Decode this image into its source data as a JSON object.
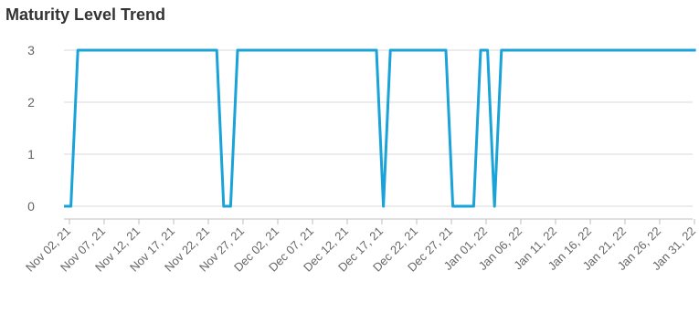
{
  "chart_data": {
    "type": "line",
    "title": "Maturity Level Trend",
    "xlabel": "",
    "ylabel": "",
    "ylim": [
      0,
      3
    ],
    "yticks": [
      0,
      1,
      2,
      3
    ],
    "grid": "horizontal",
    "colors": {
      "line": "#1aa3d9",
      "grid": "#d9d9d9",
      "axis": "#bfbfbf",
      "tick_text": "#666666",
      "title": "#333333"
    },
    "x_tick_labels": [
      "Nov 02, 21",
      "Nov 07, 21",
      "Nov 12, 21",
      "Nov 17, 21",
      "Nov 22, 21",
      "Nov 27, 21",
      "Dec 02, 21",
      "Dec 07, 21",
      "Dec 12, 21",
      "Dec 17, 21",
      "Dec 22, 21",
      "Dec 27, 21",
      "Jan 01, 22",
      "Jan 06, 22",
      "Jan 11, 22",
      "Jan 16, 22",
      "Jan 21, 22",
      "Jan 26, 22",
      "Jan 31, 22"
    ],
    "series": [
      {
        "points": [
          [
            "2021-11-01",
            0
          ],
          [
            "2021-11-02",
            0
          ],
          [
            "2021-11-03",
            3
          ],
          [
            "2021-11-23",
            3
          ],
          [
            "2021-11-24",
            0
          ],
          [
            "2021-11-25",
            0
          ],
          [
            "2021-11-26",
            3
          ],
          [
            "2021-12-16",
            3
          ],
          [
            "2021-12-17",
            0
          ],
          [
            "2021-12-18",
            3
          ],
          [
            "2021-12-26",
            3
          ],
          [
            "2021-12-27",
            0
          ],
          [
            "2021-12-30",
            0
          ],
          [
            "2021-12-31",
            3
          ],
          [
            "2022-01-01",
            3
          ],
          [
            "2022-01-02",
            0
          ],
          [
            "2022-01-03",
            3
          ],
          [
            "2022-01-31",
            3
          ]
        ]
      }
    ]
  }
}
